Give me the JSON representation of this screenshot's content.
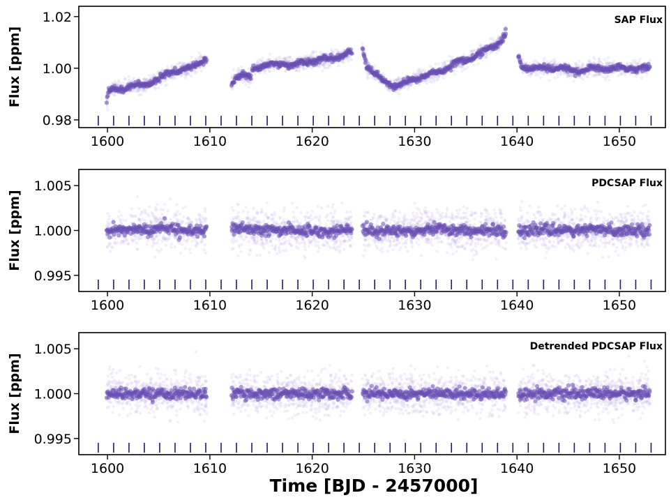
{
  "figure_xlabel": "Time [BJD - 2457000]",
  "colors": {
    "points": "#6a4fb3",
    "points_light": "#b7a8e6",
    "ticks": "#1a1a6e",
    "axes": "#000000"
  },
  "chart_data": [
    {
      "type": "scatter",
      "title": "SAP Flux",
      "ylabel": "Flux [ppm]",
      "xlim": [
        1597.2,
        1654.5
      ],
      "ylim": [
        0.977,
        1.024
      ],
      "xticks": [
        1600,
        1610,
        1620,
        1630,
        1640,
        1650
      ],
      "xtick_labels": [
        "1600",
        "1610",
        "1620",
        "1630",
        "1640",
        "1650"
      ],
      "yticks": [
        0.98,
        1.0,
        1.02
      ],
      "ytick_labels": [
        "0.98",
        "1.00",
        "1.02"
      ],
      "grid": false,
      "series": [
        {
          "x": [
            1599.9,
            1600.1,
            1600.5,
            1601.0,
            1601.5,
            1602.0,
            1603.0,
            1604.0,
            1605.0,
            1606.0,
            1607.0,
            1608.0,
            1609.0,
            1609.6,
            1612.1,
            1612.5,
            1613.0,
            1613.5,
            1614.0,
            1614.1,
            1615.0,
            1616.0,
            1617.0,
            1618.0,
            1619.0,
            1620.0,
            1621.0,
            1622.0,
            1623.0,
            1623.8,
            1624.9,
            1625.3,
            1626.0,
            1627.0,
            1628.0,
            1629.0,
            1630.0,
            1631.0,
            1632.0,
            1633.0,
            1634.0,
            1635.0,
            1636.0,
            1637.0,
            1638.0,
            1638.9,
            1640.1,
            1640.5,
            1641.0,
            1642.0,
            1644.0,
            1646.0,
            1648.0,
            1649.0,
            1649.5,
            1650.0,
            1652.0,
            1653.0
          ],
          "y": [
            0.986,
            0.991,
            0.992,
            0.992,
            0.992,
            0.993,
            0.993,
            0.994,
            0.996,
            0.998,
            0.999,
            1.0,
            1.002,
            1.004,
            0.994,
            0.996,
            0.997,
            0.997,
            0.996,
            1.0,
            1.001,
            1.001,
            1.002,
            1.001,
            1.002,
            1.003,
            1.003,
            1.004,
            1.005,
            1.006,
            1.009,
            1.001,
            0.998,
            0.995,
            0.993,
            0.994,
            0.996,
            0.997,
            0.998,
            1.0,
            1.002,
            1.003,
            1.005,
            1.007,
            1.009,
            1.013,
            1.005,
            1.001,
            1.0,
            1.0,
            1.0,
            0.999,
            1.0,
            1.0,
            1.0,
            1.0,
            1.0,
            1.0
          ]
        }
      ],
      "transit_markers_x": [
        1599.1,
        1600.6,
        1602.1,
        1603.6,
        1605.1,
        1606.6,
        1608.1,
        1609.6,
        1611.1,
        1612.6,
        1614.1,
        1615.6,
        1617.1,
        1618.6,
        1620.1,
        1621.6,
        1623.1,
        1624.6,
        1626.1,
        1627.6,
        1629.1,
        1630.6,
        1632.1,
        1633.6,
        1635.1,
        1636.6,
        1638.1,
        1639.6,
        1641.1,
        1642.6,
        1644.1,
        1645.6,
        1647.1,
        1648.6,
        1650.1,
        1651.6,
        1653.1
      ]
    },
    {
      "type": "scatter",
      "title": "PDCSAP Flux",
      "ylabel": "Flux [ppm]",
      "xlim": [
        1597.2,
        1654.5
      ],
      "ylim": [
        0.9932,
        1.0068
      ],
      "xticks": [
        1600,
        1610,
        1620,
        1630,
        1640,
        1650
      ],
      "xtick_labels": [
        "1600",
        "1610",
        "1620",
        "1630",
        "1640",
        "1650"
      ],
      "yticks": [
        0.995,
        1.0,
        1.005
      ],
      "ytick_labels": [
        "0.995",
        "1.000",
        "1.005"
      ],
      "grid": false,
      "series": [
        {
          "x": [
            1599.9,
            1601.0,
            1602.0,
            1603.0,
            1604.0,
            1605.0,
            1606.0,
            1607.0,
            1608.0,
            1609.0,
            1609.7,
            1612.1,
            1613.0,
            1614.0,
            1615.0,
            1616.0,
            1617.0,
            1618.0,
            1619.0,
            1620.0,
            1621.0,
            1622.0,
            1623.0,
            1623.9,
            1624.9,
            1626.0,
            1627.0,
            1628.0,
            1629.0,
            1630.0,
            1631.0,
            1632.0,
            1633.0,
            1634.0,
            1635.0,
            1636.0,
            1637.0,
            1638.0,
            1638.9,
            1640.1,
            1641.0,
            1642.0,
            1643.0,
            1644.0,
            1645.0,
            1646.0,
            1647.0,
            1648.0,
            1649.0,
            1650.0,
            1651.0,
            1652.0,
            1653.0
          ],
          "y": [
            0.9998,
            1.0,
            1.0001,
            1.0002,
            0.9999,
            1.0002,
            1.0003,
            1.0,
            1.0001,
            0.9999,
            1.0,
            1.0,
            1.0002,
            1.0001,
            0.9999,
            1.0001,
            1.0,
            1.0002,
            0.9999,
            1.0,
            0.9998,
            0.9999,
            1.0001,
            1.0002,
            1.0,
            0.9999,
            1.0,
            1.0,
            0.9999,
            1.0,
            1.0001,
            1.0003,
            1.0002,
            1.0,
            1.0,
            0.9999,
            1.0,
            1.0,
            0.9999,
            1.0,
            1.0,
            1.0001,
            1.0,
            1.0,
            1.0001,
            1.0,
            1.0,
            1.0001,
            1.0,
            1.0,
            1.0001,
            1.0,
            1.0
          ]
        }
      ],
      "transit_markers_x": [
        1599.1,
        1600.6,
        1602.1,
        1603.6,
        1605.1,
        1606.6,
        1608.1,
        1609.6,
        1611.1,
        1612.6,
        1614.1,
        1615.6,
        1617.1,
        1618.6,
        1620.1,
        1621.6,
        1623.1,
        1624.6,
        1626.1,
        1627.6,
        1629.1,
        1630.6,
        1632.1,
        1633.6,
        1635.1,
        1636.6,
        1638.1,
        1639.6,
        1641.1,
        1642.6,
        1644.1,
        1645.6,
        1647.1,
        1648.6,
        1650.1,
        1651.6,
        1653.1
      ]
    },
    {
      "type": "scatter",
      "title": "Detrended PDCSAP Flux",
      "ylabel": "Flux [ppm]",
      "xlim": [
        1597.2,
        1654.5
      ],
      "ylim": [
        0.9932,
        1.0068
      ],
      "xticks": [
        1600,
        1610,
        1620,
        1630,
        1640,
        1650
      ],
      "xtick_labels": [
        "1600",
        "1610",
        "1620",
        "1630",
        "1640",
        "1650"
      ],
      "yticks": [
        0.995,
        1.0,
        1.005
      ],
      "ytick_labels": [
        "0.995",
        "1.000",
        "1.005"
      ],
      "grid": false,
      "series": [
        {
          "x": [
            1599.9,
            1601.0,
            1602.0,
            1603.0,
            1604.0,
            1605.0,
            1606.0,
            1607.0,
            1608.0,
            1609.0,
            1609.7,
            1612.1,
            1613.0,
            1614.0,
            1615.0,
            1616.0,
            1617.0,
            1618.0,
            1619.0,
            1620.0,
            1621.0,
            1622.0,
            1623.0,
            1623.9,
            1624.9,
            1626.0,
            1627.0,
            1628.0,
            1629.0,
            1630.0,
            1631.0,
            1632.0,
            1633.0,
            1634.0,
            1635.0,
            1636.0,
            1637.0,
            1638.0,
            1638.9,
            1640.1,
            1641.0,
            1642.0,
            1643.0,
            1644.0,
            1645.0,
            1646.0,
            1647.0,
            1648.0,
            1649.0,
            1650.0,
            1651.0,
            1652.0,
            1653.0
          ],
          "y": [
            1.0,
            1.0,
            1.0,
            1.0,
            1.0,
            1.0,
            1.0,
            1.0,
            1.0,
            1.0,
            1.0,
            1.0,
            1.0,
            1.0,
            1.0,
            1.0,
            1.0,
            1.0,
            1.0,
            1.0,
            1.0,
            1.0,
            1.0,
            1.0,
            1.0,
            1.0,
            1.0,
            1.0,
            1.0,
            1.0,
            1.0,
            1.0,
            1.0,
            1.0,
            1.0,
            1.0,
            1.0,
            1.0,
            1.0,
            1.0,
            1.0,
            1.0,
            1.0,
            1.0,
            1.0,
            1.0,
            1.0,
            1.0,
            1.0,
            1.0,
            1.0,
            1.0,
            1.0
          ]
        }
      ],
      "transit_markers_x": [
        1599.1,
        1600.6,
        1602.1,
        1603.6,
        1605.1,
        1606.6,
        1608.1,
        1609.6,
        1611.1,
        1612.6,
        1614.1,
        1615.6,
        1617.1,
        1618.6,
        1620.1,
        1621.6,
        1623.1,
        1624.6,
        1626.1,
        1627.6,
        1629.1,
        1630.6,
        1632.1,
        1633.6,
        1635.1,
        1636.6,
        1638.1,
        1639.6,
        1641.1,
        1642.6,
        1644.1,
        1645.6,
        1647.1,
        1648.6,
        1650.1,
        1651.6,
        1653.1
      ]
    }
  ]
}
